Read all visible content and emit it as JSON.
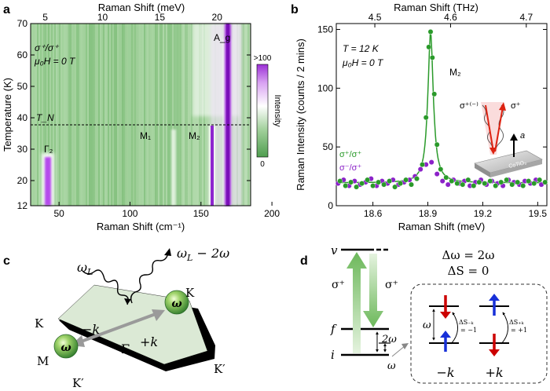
{
  "panels": {
    "a": {
      "letter": "a",
      "top_axis_label": "Raman Shift (meV)",
      "top_ticks": [
        "5",
        "10",
        "15",
        "20"
      ],
      "bottom_axis_label": "Raman Shift (cm⁻¹)",
      "bottom_ticks": [
        "50",
        "100",
        "150",
        "200"
      ],
      "y_axis_label": "Temperature (K)",
      "y_ticks": [
        "12",
        "20",
        "30",
        "40",
        "50",
        "60",
        "70"
      ],
      "polarization": "σ⁺/σ⁺",
      "field": "μ₀H = 0 T",
      "tn_label": "T_N",
      "mode_labels": [
        "Γ₂",
        "M₁",
        "M₂",
        "A_g"
      ],
      "colorbar_top": ">100",
      "colorbar_bottom": "0",
      "colorbar_label": "Intensity",
      "colors": {
        "low": "#5aa55a",
        "mid": "#ffffff",
        "high": "#9b2fd6"
      }
    },
    "b": {
      "letter": "b",
      "top_axis_label": "Raman Shift (THz)",
      "top_ticks": [
        "4.5",
        "4.6",
        "4.7"
      ],
      "bottom_axis_label": "Raman Shift (meV)",
      "bottom_ticks": [
        "18.6",
        "18.9",
        "19.2",
        "19.5"
      ],
      "y_axis_label": "Raman Intensity (counts / 2 mins)",
      "y_ticks": [
        "0",
        "50",
        "100",
        "150"
      ],
      "temperature": "T = 12 K",
      "field": "μ₀H = 0 T",
      "peak_label": "M₂",
      "legend": [
        {
          "label": "σ⁺/σ⁺",
          "color": "#2a9a2a"
        },
        {
          "label": "σ⁻/σ⁺",
          "color": "#8b22c8"
        }
      ],
      "inset": {
        "incident": "σ⁺⁽⁻⁾",
        "scattered": "σ⁺",
        "axis": "a",
        "sample": "CoTiO₃"
      }
    },
    "c": {
      "letter": "c",
      "omega_L": "ω",
      "omega_L_sub": "L",
      "omega_out": "ω",
      "omega_out_sub": "L",
      "omega_out_tail": " − 2ω",
      "K_top": "K",
      "K_left": "K",
      "M_left": "M",
      "K_prime_right": "K′",
      "K_prime_bottom": "K′",
      "minus_k": "−k",
      "plus_k": "+k",
      "gamma": "Γ",
      "magnon": "ω"
    },
    "d": {
      "letter": "d",
      "levels": [
        "v",
        "f",
        "i"
      ],
      "sigma_up": "σ⁺",
      "sigma_down": "σ⁺",
      "two_omega": "2ω",
      "omega": "ω",
      "delta_omega": "Δω = 2ω",
      "delta_s": "ΔS = 0",
      "inset_omega": "ω",
      "ds_minus": "ΔS₋ₖ",
      "ds_minus_val": "= −1",
      "ds_plus": "ΔS₊ₖ",
      "ds_plus_val": "= +1",
      "minus_k": "−k",
      "plus_k": "+k"
    }
  },
  "chart_data": [
    {
      "type": "heatmap",
      "title": "",
      "xlabel": "Raman Shift (cm⁻¹)",
      "x2label": "Raman Shift (meV)",
      "ylabel": "Temperature (K)",
      "xlim": [
        30,
        185
      ],
      "ylim": [
        12,
        70
      ],
      "colorbar": {
        "label": "Intensity",
        "range": [
          "0",
          ">100"
        ]
      },
      "transition": {
        "label": "T_N",
        "temperature": 38
      },
      "modes": [
        {
          "label": "Γ₂",
          "x": 43,
          "y_range": [
            14,
            29
          ]
        },
        {
          "label": "M₁",
          "x": 108,
          "y_range": [
            12,
            38
          ]
        },
        {
          "label": "M₂",
          "x": 152.5,
          "y_range": [
            12,
            38
          ]
        },
        {
          "label": "A_g",
          "x": 166,
          "y_range": [
            12,
            70
          ]
        }
      ]
    },
    {
      "type": "scatter",
      "title": "",
      "xlabel": "Raman Shift (meV)",
      "x2label": "Raman Shift (THz)",
      "ylabel": "Raman Intensity (counts / 2 mins)",
      "xlim": [
        18.4,
        19.55
      ],
      "ylim": [
        0,
        155
      ],
      "series": [
        {
          "name": "σ⁺/σ⁺",
          "color": "#2a9a2a",
          "x": [
            18.42,
            18.45,
            18.48,
            18.51,
            18.54,
            18.57,
            18.6,
            18.63,
            18.66,
            18.69,
            18.72,
            18.75,
            18.78,
            18.81,
            18.84,
            18.87,
            18.89,
            18.905,
            18.915,
            18.925,
            18.935,
            18.95,
            18.97,
            19.0,
            19.03,
            19.06,
            19.09,
            19.12,
            19.15,
            19.18,
            19.21,
            19.24,
            19.27,
            19.3,
            19.33,
            19.36,
            19.39,
            19.42,
            19.45,
            19.48,
            19.51,
            19.54
          ],
          "y": [
            21,
            17,
            20,
            16,
            19,
            22,
            17,
            20,
            18,
            21,
            16,
            19,
            22,
            18,
            23,
            35,
            75,
            135,
            148,
            126,
            95,
            52,
            31,
            24,
            21,
            19,
            18,
            22,
            17,
            20,
            19,
            21,
            17,
            20,
            22,
            18,
            20,
            17,
            21,
            19,
            22,
            20
          ]
        },
        {
          "name": "σ⁻/σ⁺",
          "color": "#8b22c8",
          "x": [
            18.41,
            18.44,
            18.47,
            18.5,
            18.53,
            18.56,
            18.59,
            18.62,
            18.65,
            18.68,
            18.71,
            18.74,
            18.77,
            18.8,
            18.83,
            18.86,
            18.89,
            18.92,
            18.95,
            18.98,
            19.01,
            19.04,
            19.07,
            19.1,
            19.13,
            19.16,
            19.19,
            19.22,
            19.25,
            19.28,
            19.31,
            19.34,
            19.37,
            19.4,
            19.43,
            19.46,
            19.49,
            19.52
          ],
          "y": [
            19,
            22,
            17,
            21,
            18,
            20,
            23,
            17,
            21,
            19,
            22,
            18,
            20,
            22,
            25,
            31,
            35,
            37,
            27,
            21,
            18,
            22,
            19,
            21,
            17,
            20,
            22,
            18,
            21,
            19,
            17,
            22,
            20,
            18,
            21,
            19,
            22,
            18
          ]
        },
        {
          "name": "fit",
          "type": "line",
          "color": "#2a9a2a",
          "function": "Lorentzian",
          "center": 18.915,
          "amplitude": 128,
          "baseline": 19.5
        }
      ]
    }
  ]
}
